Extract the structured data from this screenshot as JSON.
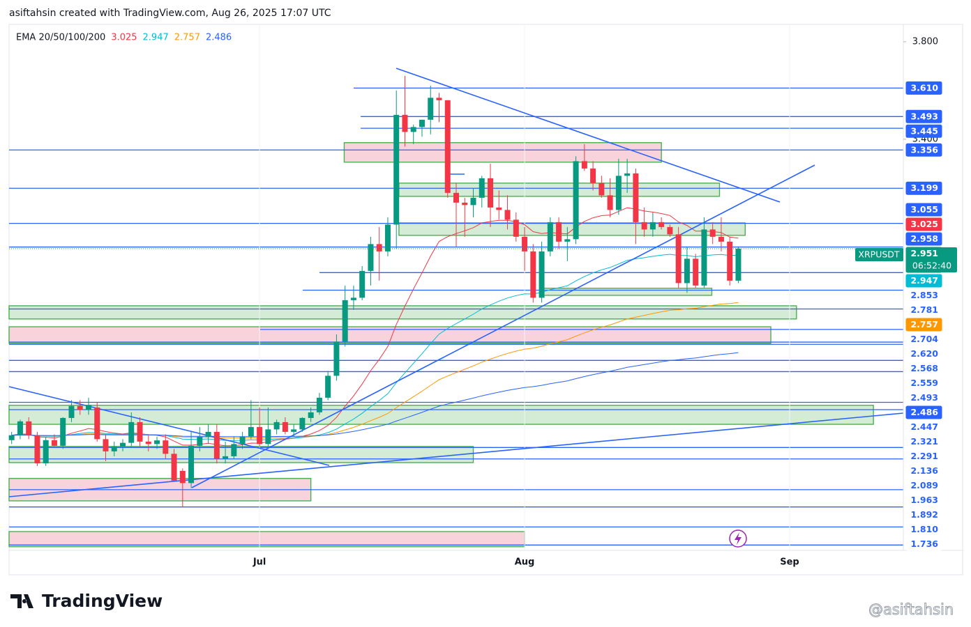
{
  "chart_data": {
    "type": "candlestick",
    "header": "asiftahsin created with TradingView.com, Aug 26, 2025 17:07 UTC",
    "indicator": "EMA 20/50/100/200",
    "ema": [
      {
        "name": "20",
        "value": 3.025,
        "color": "#f23645"
      },
      {
        "name": "50",
        "value": 2.947,
        "color": "#00bcd4"
      },
      {
        "name": "100",
        "value": 2.757,
        "color": "#ff9800"
      },
      {
        "name": "200",
        "value": 2.486,
        "color": "#2962ff"
      }
    ],
    "symbol": "XRPUSDT",
    "countdown": "06:52:40",
    "up_color": "#089981",
    "down_color": "#f23645",
    "level_color": "#2962ff",
    "candles": [
      [
        2.166,
        2.2,
        2.15,
        2.186
      ],
      [
        2.186,
        2.25,
        2.17,
        2.243
      ],
      [
        2.243,
        2.26,
        2.17,
        2.186
      ],
      [
        2.186,
        2.2,
        2.06,
        2.071
      ],
      [
        2.071,
        2.18,
        2.06,
        2.166
      ],
      [
        2.166,
        2.19,
        2.14,
        2.143
      ],
      [
        2.143,
        2.26,
        2.13,
        2.257
      ],
      [
        2.257,
        2.33,
        2.24,
        2.306
      ],
      [
        2.306,
        2.33,
        2.27,
        2.29
      ],
      [
        2.29,
        2.34,
        2.27,
        2.31
      ],
      [
        2.3,
        2.32,
        2.16,
        2.17
      ],
      [
        2.17,
        2.19,
        2.08,
        2.12
      ],
      [
        2.12,
        2.16,
        2.1,
        2.14
      ],
      [
        2.14,
        2.17,
        2.12,
        2.155
      ],
      [
        2.155,
        2.28,
        2.14,
        2.24
      ],
      [
        2.24,
        2.26,
        2.14,
        2.16
      ],
      [
        2.16,
        2.19,
        2.12,
        2.15
      ],
      [
        2.15,
        2.18,
        2.13,
        2.165
      ],
      [
        2.165,
        2.19,
        2.09,
        2.11
      ],
      [
        2.11,
        2.13,
        2.0,
        2.0
      ],
      [
        2.04,
        2.05,
        1.89,
        1.99
      ],
      [
        1.99,
        2.2,
        1.97,
        2.143
      ],
      [
        2.143,
        2.22,
        2.12,
        2.18
      ],
      [
        2.18,
        2.23,
        2.15,
        2.2
      ],
      [
        2.2,
        2.23,
        2.07,
        2.09
      ],
      [
        2.09,
        2.16,
        2.07,
        2.1
      ],
      [
        2.1,
        2.18,
        2.09,
        2.15
      ],
      [
        2.15,
        2.2,
        2.13,
        2.18
      ],
      [
        2.18,
        2.33,
        2.17,
        2.22
      ],
      [
        2.22,
        2.3,
        2.14,
        2.15
      ],
      [
        2.15,
        2.3,
        2.14,
        2.21
      ],
      [
        2.21,
        2.25,
        2.19,
        2.24
      ],
      [
        2.24,
        2.26,
        2.19,
        2.2
      ],
      [
        2.2,
        2.23,
        2.18,
        2.21
      ],
      [
        2.21,
        2.26,
        2.2,
        2.257
      ],
      [
        2.257,
        2.3,
        2.24,
        2.28
      ],
      [
        2.28,
        2.36,
        2.27,
        2.34
      ],
      [
        2.34,
        2.45,
        2.33,
        2.43
      ],
      [
        2.43,
        2.6,
        2.41,
        2.57
      ],
      [
        2.57,
        2.8,
        2.55,
        2.74
      ],
      [
        2.74,
        2.8,
        2.7,
        2.75
      ],
      [
        2.75,
        2.88,
        2.74,
        2.86
      ],
      [
        2.86,
        3.0,
        2.8,
        2.97
      ],
      [
        2.97,
        3.04,
        2.82,
        2.94
      ],
      [
        2.94,
        3.08,
        2.92,
        3.05
      ],
      [
        3.05,
        3.6,
        2.95,
        3.5
      ],
      [
        3.5,
        3.66,
        3.37,
        3.43
      ],
      [
        3.43,
        3.46,
        3.38,
        3.45
      ],
      [
        3.45,
        3.48,
        3.41,
        3.48
      ],
      [
        3.48,
        3.62,
        3.42,
        3.57
      ],
      [
        3.57,
        3.59,
        3.47,
        3.56
      ],
      [
        3.56,
        3.56,
        3.16,
        3.18
      ],
      [
        3.18,
        3.22,
        2.96,
        3.14
      ],
      [
        3.14,
        3.16,
        3.0,
        3.13
      ],
      [
        3.13,
        3.2,
        3.08,
        3.16
      ],
      [
        3.16,
        3.25,
        3.12,
        3.24
      ],
      [
        3.24,
        3.3,
        3.04,
        3.12
      ],
      [
        3.12,
        3.19,
        3.07,
        3.11
      ],
      [
        3.11,
        3.17,
        3.03,
        3.07
      ],
      [
        3.07,
        3.1,
        2.98,
        3.0
      ],
      [
        3.0,
        3.04,
        2.86,
        2.94
      ],
      [
        2.94,
        2.97,
        2.73,
        2.75
      ],
      [
        2.75,
        2.98,
        2.73,
        2.94
      ],
      [
        2.94,
        3.08,
        2.92,
        3.06
      ],
      [
        3.06,
        3.08,
        2.95,
        2.98
      ],
      [
        2.98,
        3.04,
        2.9,
        2.99
      ],
      [
        2.99,
        3.33,
        2.97,
        3.31
      ],
      [
        3.31,
        3.38,
        3.27,
        3.28
      ],
      [
        3.28,
        3.31,
        3.19,
        3.22
      ],
      [
        3.22,
        3.25,
        3.16,
        3.17
      ],
      [
        3.17,
        3.24,
        3.08,
        3.11
      ],
      [
        3.11,
        3.32,
        3.09,
        3.25
      ],
      [
        3.25,
        3.32,
        3.18,
        3.26
      ],
      [
        3.26,
        3.28,
        2.97,
        3.06
      ],
      [
        3.06,
        3.12,
        3.0,
        3.03
      ],
      [
        3.03,
        3.1,
        3.0,
        3.06
      ],
      [
        3.06,
        3.08,
        3.03,
        3.04
      ],
      [
        3.04,
        3.05,
        3.0,
        3.01
      ],
      [
        3.01,
        3.04,
        2.79,
        2.81
      ],
      [
        2.81,
        2.96,
        2.77,
        2.91
      ],
      [
        2.91,
        2.93,
        2.79,
        2.8
      ],
      [
        2.8,
        3.08,
        2.79,
        3.03
      ],
      [
        3.03,
        3.06,
        2.97,
        3.0
      ],
      [
        3.0,
        3.08,
        2.94,
        2.98
      ],
      [
        2.98,
        3.0,
        2.8,
        2.82
      ],
      [
        2.82,
        2.96,
        2.81,
        2.951
      ]
    ],
    "levels": [
      {
        "value": 3.61,
        "label": "3.610"
      },
      {
        "value": 3.493,
        "label": "3.493"
      },
      {
        "value": 3.445,
        "label": "3.445"
      },
      {
        "value": 3.356,
        "label": "3.356"
      },
      {
        "value": 3.199,
        "label": "3.199"
      },
      {
        "value": 3.055,
        "label": "3.055"
      },
      {
        "value": 2.958,
        "label": "2.958"
      },
      {
        "value": 2.853,
        "label": "2.853"
      },
      {
        "value": 2.781,
        "label": "2.781"
      },
      {
        "value": 2.704,
        "label": "2.704"
      },
      {
        "value": 2.62,
        "label": "2.620"
      },
      {
        "value": 2.568,
        "label": "2.568"
      },
      {
        "value": 2.559,
        "label": "2.559"
      },
      {
        "value": 2.493,
        "label": "2.493"
      },
      {
        "value": 2.447,
        "label": "2.447"
      },
      {
        "value": 2.321,
        "label": "2.321"
      },
      {
        "value": 2.291,
        "label": "2.291"
      },
      {
        "value": 2.136,
        "label": "2.136"
      },
      {
        "value": 2.089,
        "label": "2.089"
      },
      {
        "value": 1.963,
        "label": "1.963"
      },
      {
        "value": 1.892,
        "label": "1.892"
      },
      {
        "value": 1.81,
        "label": "1.810"
      },
      {
        "value": 1.736,
        "label": "1.736"
      }
    ],
    "zones": [
      {
        "low": 3.306,
        "high": 3.386,
        "fill": "#f8d3dc"
      },
      {
        "low": 3.166,
        "high": 3.22,
        "fill": "#d4ecd6"
      },
      {
        "low": 3.006,
        "high": 3.057,
        "fill": "#d4ecd6"
      },
      {
        "low": 2.76,
        "high": 2.789,
        "fill": "#d4ecd6"
      },
      {
        "low": 2.663,
        "high": 2.717,
        "fill": "#d4ecd6"
      },
      {
        "low": 2.563,
        "high": 2.631,
        "fill": "#f8d3dc"
      },
      {
        "low": 2.231,
        "high": 2.309,
        "fill": "#d4ecd6"
      },
      {
        "low": 2.074,
        "high": 2.14,
        "fill": "#d4ecd6"
      },
      {
        "low": 1.917,
        "high": 2.009,
        "fill": "#f8d3dc"
      },
      {
        "low": 1.729,
        "high": 1.791,
        "fill": "#f8d3dc"
      }
    ],
    "xlim": [
      -0.3,
      104.3
    ],
    "xticks": [
      {
        "value": 29,
        "label": "Jul"
      },
      {
        "value": 60,
        "label": "Aug"
      },
      {
        "value": 91,
        "label": "Sep"
      }
    ],
    "ylim": [
      1.714,
      3.871
    ],
    "yticks": [
      {
        "value": 3.8,
        "label": "3.800"
      },
      {
        "value": 3.4,
        "label": "3.400"
      }
    ],
    "grid": "x",
    "brand": "TradingView",
    "watermark": "@asiftahsin"
  }
}
